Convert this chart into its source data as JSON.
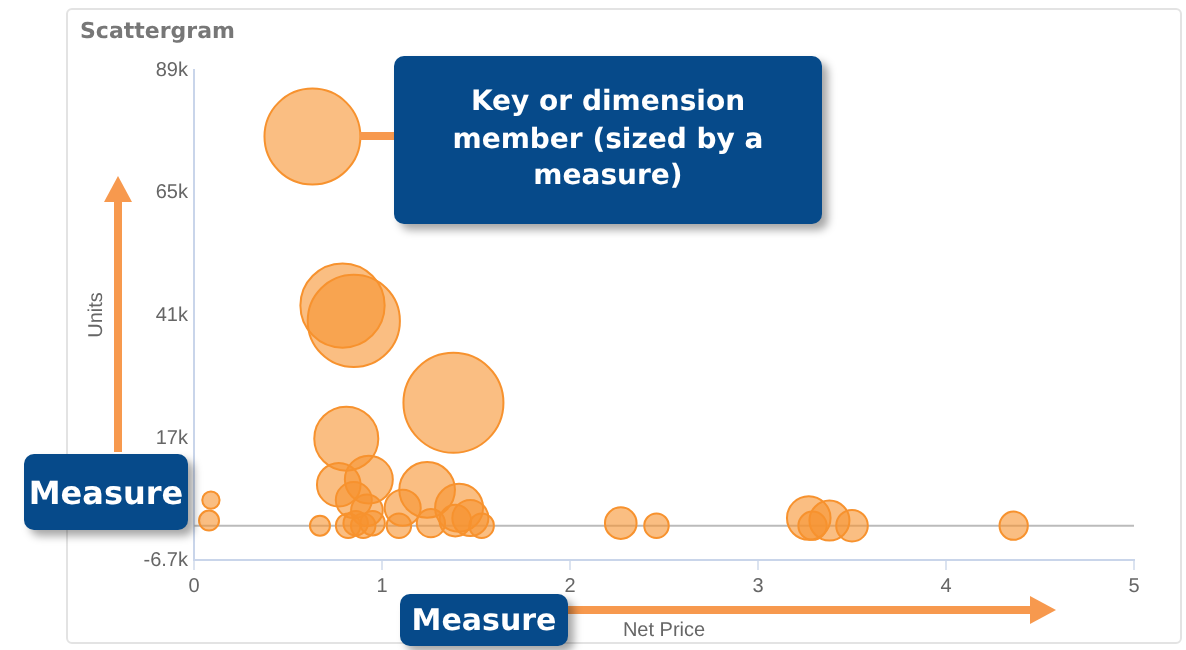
{
  "chart_data": {
    "type": "bubble",
    "title": "Scattergram",
    "xlabel": "Net Price",
    "ylabel": "Units",
    "annotations": [
      "Key or dimension member (sized by a measure)",
      "Measure",
      "Measure"
    ],
    "xlim": [
      0,
      5
    ],
    "xticks": [
      0,
      1,
      2,
      3,
      4,
      5
    ],
    "ylim": [
      -6700,
      89000
    ],
    "yticks": [
      {
        "value": -6700,
        "label": "-6.7k"
      },
      {
        "value": 17000,
        "label": "17k"
      },
      {
        "value": 41000,
        "label": "41k"
      },
      {
        "value": 65000,
        "label": "65k"
      },
      {
        "value": 89000,
        "label": "89k"
      }
    ],
    "grid": false,
    "ref_lines": [
      {
        "axis": "y",
        "value": 0,
        "color": "#bbbbbb"
      }
    ],
    "series": [
      {
        "color": "#f7922e",
        "x": [
          0.63,
          0.79,
          0.85,
          1.38,
          0.81,
          0.77,
          0.93,
          1.24,
          1.41,
          1.11,
          0.09,
          0.08,
          0.67,
          0.82,
          0.86,
          0.9,
          0.95,
          0.85,
          0.92,
          1.09,
          1.26,
          1.39,
          1.47,
          1.53,
          2.27,
          2.46,
          3.27,
          3.29,
          3.38,
          3.5,
          4.36
        ],
        "values": [
          76000,
          43000,
          40000,
          24000,
          17000,
          8000,
          9000,
          7000,
          3500,
          3500,
          5000,
          1000,
          0,
          0,
          500,
          0,
          500,
          5000,
          3000,
          0,
          500,
          1000,
          1500,
          0,
          500,
          0,
          1500,
          0,
          1000,
          0,
          0
        ],
        "sizes": [
          0.92,
          0.71,
          0.85,
          1,
          0.41,
          0.19,
          0.23,
          0.31,
          0.23,
          0.13,
          0.03,
          0.04,
          0.04,
          0.06,
          0.06,
          0.06,
          0.06,
          0.13,
          0.1,
          0.06,
          0.08,
          0.1,
          0.13,
          0.06,
          0.1,
          0.06,
          0.19,
          0.08,
          0.16,
          0.1,
          0.08
        ]
      }
    ]
  }
}
